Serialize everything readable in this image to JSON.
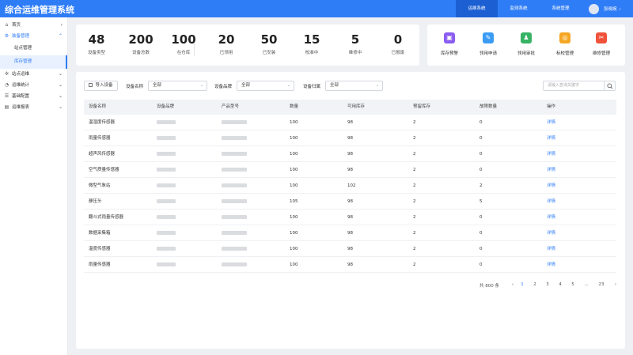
{
  "app": {
    "title": "综合运维管理系统"
  },
  "topnav": [
    {
      "label": "运维系统",
      "active": true
    },
    {
      "label": "监测系统",
      "active": false
    },
    {
      "label": "系统管理",
      "active": false
    }
  ],
  "user": {
    "name": "张晓婉"
  },
  "sidebar": {
    "home": "首页",
    "equipment": "装备管理",
    "equipment_sub": [
      "站点管理",
      "库存管理"
    ],
    "site_ops": "站点运维",
    "ops_stats": "运维统计",
    "basic_config": "基础配置",
    "ops_report": "运维报表"
  },
  "stats": [
    {
      "value": "48",
      "label": "设备类型"
    },
    {
      "value": "200",
      "label": "设备总数"
    },
    {
      "value": "100",
      "label": "在仓库"
    },
    {
      "value": "20",
      "label": "已领用"
    },
    {
      "value": "50",
      "label": "已安装"
    },
    {
      "value": "15",
      "label": "校准中"
    },
    {
      "value": "5",
      "label": "维修中"
    },
    {
      "value": "0",
      "label": "已报废"
    }
  ],
  "quick": [
    {
      "label": "库存预警",
      "icon": "warehouse-alert-icon",
      "color": "#8a5cf0"
    },
    {
      "label": "领用申请",
      "icon": "apply-form-icon",
      "color": "#3a9cf5"
    },
    {
      "label": "领用审批",
      "icon": "approval-stamp-icon",
      "color": "#36b364"
    },
    {
      "label": "标校管理",
      "icon": "calibration-target-icon",
      "color": "#f5a623"
    },
    {
      "label": "维修管理",
      "icon": "repair-tools-icon",
      "color": "#f0533a"
    }
  ],
  "filters": {
    "import_label": "导入设备",
    "name_label": "设备名称",
    "name_value": "全部",
    "brand_label": "设备品牌",
    "brand_value": "全部",
    "source_label": "设备归属",
    "source_value": "全部",
    "search_placeholder": "请输入查询关键字"
  },
  "table": {
    "headers": [
      "设备名称",
      "设备品牌",
      "产品型号",
      "数量",
      "可用库存",
      "预留库存",
      "故障数量",
      "操作"
    ],
    "rows": [
      {
        "name": "温湿度传感器",
        "qty": "100",
        "available": "98",
        "reserved": "2",
        "fault": "0",
        "action": "详情"
      },
      {
        "name": "雨量传感器",
        "qty": "100",
        "available": "98",
        "reserved": "2",
        "fault": "0",
        "action": "详情"
      },
      {
        "name": "超声风传感器",
        "qty": "100",
        "available": "98",
        "reserved": "2",
        "fault": "0",
        "action": "详情"
      },
      {
        "name": "空气质量传感器",
        "qty": "100",
        "available": "98",
        "reserved": "2",
        "fault": "0",
        "action": "详情"
      },
      {
        "name": "微型气象站",
        "qty": "100",
        "available": "102",
        "reserved": "2",
        "fault": "2",
        "action": "详情"
      },
      {
        "name": "静压头",
        "qty": "105",
        "available": "98",
        "reserved": "2",
        "fault": "5",
        "action": "详情"
      },
      {
        "name": "翻斗式雨量传感器",
        "qty": "100",
        "available": "98",
        "reserved": "2",
        "fault": "0",
        "action": "详情"
      },
      {
        "name": "数据采集箱",
        "qty": "100",
        "available": "98",
        "reserved": "2",
        "fault": "0",
        "action": "详情"
      },
      {
        "name": "温度传感器",
        "qty": "100",
        "available": "98",
        "reserved": "2",
        "fault": "0",
        "action": "详情"
      },
      {
        "name": "雨量传感器",
        "qty": "100",
        "available": "98",
        "reserved": "2",
        "fault": "0",
        "action": "详情"
      }
    ]
  },
  "pagination": {
    "total": "共 800 条",
    "prev": "‹",
    "pages": [
      "1",
      "2",
      "3",
      "4",
      "5",
      "...",
      "23"
    ],
    "next": "›"
  }
}
